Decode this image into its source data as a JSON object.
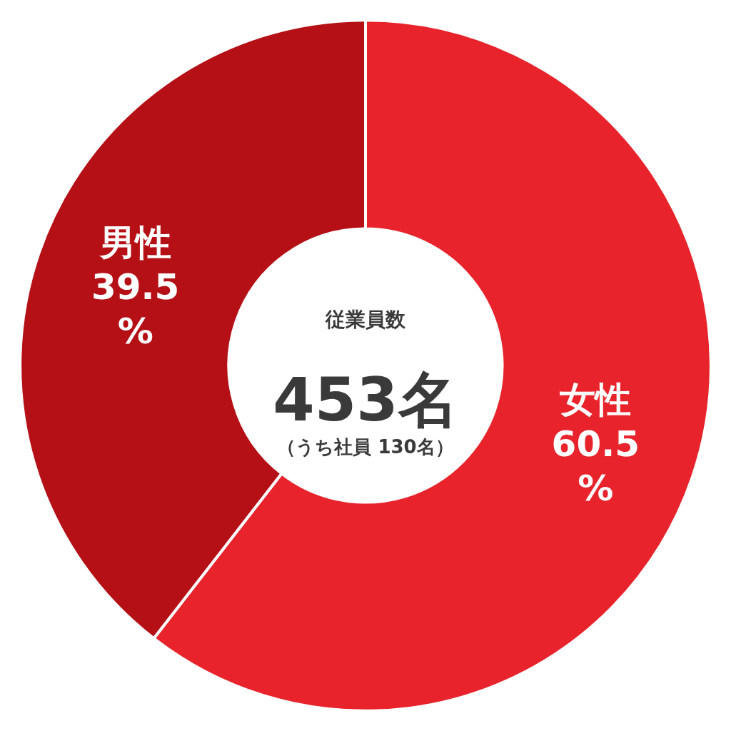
{
  "chart_data": {
    "type": "donut",
    "categories": [
      "女性",
      "男性"
    ],
    "values": [
      60.5,
      39.5
    ],
    "colors": [
      "#e8232b",
      "#b51016"
    ],
    "value_labels": [
      "60.5%",
      "39.5%"
    ],
    "legend": false,
    "annotations": [
      "従業員数",
      "453名",
      "（うち社員 130名）"
    ]
  }
}
